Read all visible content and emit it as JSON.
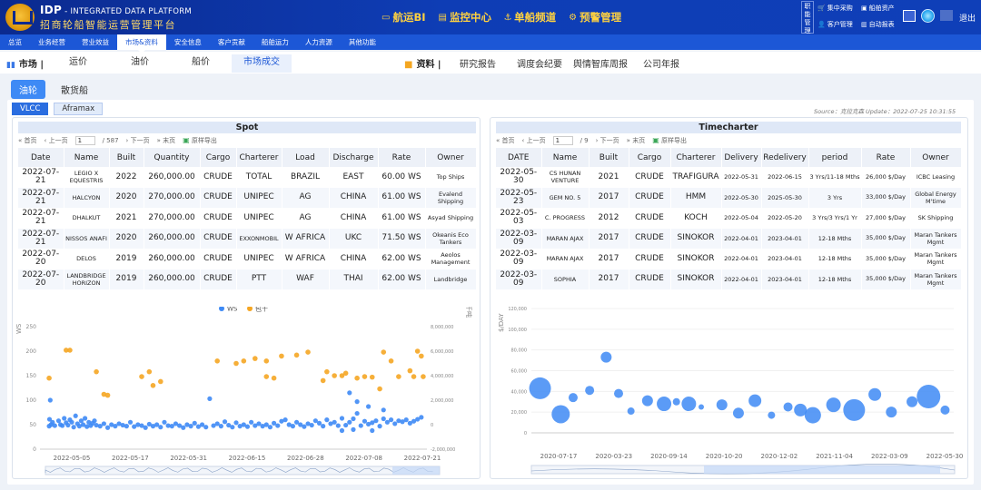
{
  "app": {
    "brand_title": "IDP",
    "brand_sub": " - INTEGRATED DATA PLATFORM",
    "brand_cn": "招商轮船智能运营管理平台",
    "topnav": [
      {
        "icon": "▭",
        "label": "航运BI"
      },
      {
        "icon": "▤",
        "label": "监控中心"
      },
      {
        "icon": "⚓",
        "label": "单船频道"
      },
      {
        "icon": "⚙",
        "label": "预警管理"
      }
    ],
    "side_label": "职能管理",
    "quick": [
      "集中采购",
      "船舶资产",
      "客户管理",
      "自动报表"
    ],
    "logout": "退出"
  },
  "menu": [
    "总览",
    "业务经营",
    "营业效益",
    "市场&资料",
    "安全信息",
    "客户贡献",
    "船舶运力",
    "人力资源",
    "其他功能"
  ],
  "subnav": {
    "market_label": "市场 |",
    "tabs": [
      "运价",
      "油价",
      "船价",
      "市场成交"
    ],
    "res_label": "资料 |",
    "res_links": [
      "研究报告",
      "调度会纪要",
      "舆情智库周报",
      "公司年报"
    ]
  },
  "pills": [
    "油轮",
    "散货船"
  ],
  "sizes": [
    "VLCC",
    "Aframax"
  ],
  "source": "Source：克拉克森  Update：2022-07-25 10:31:55",
  "spot": {
    "title": "Spot",
    "pager": {
      "first": "首页",
      "prev": "上一页",
      "page": "1",
      "total": "/ 587",
      "next": "下一页",
      "last": "末页",
      "export": "原样导出"
    },
    "headers": [
      "Date",
      "Name",
      "Built",
      "Quantity",
      "Cargo",
      "Charterer",
      "Load",
      "Discharge",
      "Rate",
      "Owner"
    ],
    "rows": [
      [
        "2022-07-21",
        "LEGIO X EQUESTRIS",
        "2022",
        "260,000.00",
        "CRUDE",
        "TOTAL",
        "BRAZIL",
        "EAST",
        "60.00 WS",
        "Top Ships"
      ],
      [
        "2022-07-21",
        "HALCYON",
        "2020",
        "270,000.00",
        "CRUDE",
        "UNIPEC",
        "AG",
        "CHINA",
        "61.00 WS",
        "Evalend Shipping"
      ],
      [
        "2022-07-21",
        "DHALKUT",
        "2021",
        "270,000.00",
        "CRUDE",
        "UNIPEC",
        "AG",
        "CHINA",
        "61.00 WS",
        "Asyad Shipping"
      ],
      [
        "2022-07-21",
        "NISSOS ANAFI",
        "2020",
        "260,000.00",
        "CRUDE",
        "EXXONMOBIL",
        "W AFRICA",
        "UKC",
        "71.50 WS",
        "Okeanis Eco Tankers"
      ],
      [
        "2022-07-20",
        "DELOS",
        "2019",
        "260,000.00",
        "CRUDE",
        "UNIPEC",
        "W AFRICA",
        "CHINA",
        "62.00 WS",
        "Aeolos Management"
      ],
      [
        "2022-07-20",
        "LANDBRIDGE HORIZON",
        "2019",
        "260,000.00",
        "CRUDE",
        "PTT",
        "WAF",
        "THAI",
        "62.00 WS",
        "Landbridge"
      ]
    ]
  },
  "tc": {
    "title": "Timecharter",
    "pager": {
      "first": "首页",
      "prev": "上一页",
      "page": "1",
      "total": "/ 9",
      "next": "下一页",
      "last": "末页",
      "export": "原样导出"
    },
    "headers": [
      "DATE",
      "Name",
      "Built",
      "Cargo",
      "Charterer",
      "Delivery",
      "Redelivery",
      "period",
      "Rate",
      "Owner"
    ],
    "rows": [
      [
        "2022-05-30",
        "CS HUNAN VENTURE",
        "2021",
        "CRUDE",
        "TRAFIGURA",
        "2022-05-31",
        "2022-06-15",
        "3 Yrs/11-18 Mths",
        "26,000 $/Day",
        "ICBC Leasing"
      ],
      [
        "2022-05-23",
        "GEM NO. 5",
        "2017",
        "CRUDE",
        "HMM",
        "2022-05-30",
        "2025-05-30",
        "3 Yrs",
        "33,000 $/Day",
        "Global Energy M'time"
      ],
      [
        "2022-05-03",
        "C. PROGRESS",
        "2012",
        "CRUDE",
        "KOCH",
        "2022-05-04",
        "2022-05-20",
        "3 Yrs/3 Yrs/1 Yr",
        "27,000 $/Day",
        "SK Shipping"
      ],
      [
        "2022-03-09",
        "MARAN AJAX",
        "2017",
        "CRUDE",
        "SINOKOR",
        "2022-04-01",
        "2023-04-01",
        "12-18 Mths",
        "35,000 $/Day",
        "Maran Tankers Mgmt"
      ],
      [
        "2022-03-09",
        "MARAN AJAX",
        "2017",
        "CRUDE",
        "SINOKOR",
        "2022-04-01",
        "2023-04-01",
        "12-18 Mths",
        "35,000 $/Day",
        "Maran Tankers Mgmt"
      ],
      [
        "2022-03-09",
        "SOPHIA",
        "2017",
        "CRUDE",
        "SINOKOR",
        "2022-04-01",
        "2023-04-01",
        "12-18 Mths",
        "35,000 $/Day",
        "Maran Tankers Mgmt"
      ]
    ]
  },
  "chart_data": [
    {
      "type": "scatter",
      "ylabel": "WS",
      "y2label": "千吨",
      "colors": [
        "#3e8af5",
        "#f5a623"
      ],
      "legend": [
        "WS",
        "包干"
      ],
      "legend_position": "top",
      "x_ticks": [
        "2022-05-05",
        "2022-05-17",
        "2022-05-31",
        "2022-06-15",
        "2022-06-28",
        "2022-07-08",
        "2022-07-21"
      ],
      "y_ticks": [
        "0",
        "50",
        "100",
        "150",
        "200",
        "250"
      ],
      "y2_ticks": [
        "-2,000,000",
        "0",
        "2,000,000",
        "4,000,000",
        "6,000,000",
        "8,000,000"
      ],
      "series": [
        {
          "name": "WS",
          "points": [
            [
              0.005,
              47
            ],
            [
              0.006,
              61
            ],
            [
              0.008,
              100
            ],
            [
              0.01,
              50
            ],
            [
              0.014,
              55
            ],
            [
              0.02,
              48
            ],
            [
              0.03,
              58
            ],
            [
              0.035,
              50
            ],
            [
              0.04,
              48
            ],
            [
              0.045,
              63
            ],
            [
              0.05,
              54
            ],
            [
              0.055,
              49
            ],
            [
              0.06,
              60
            ],
            [
              0.065,
              55
            ],
            [
              0.07,
              45
            ],
            [
              0.075,
              68
            ],
            [
              0.08,
              52
            ],
            [
              0.085,
              47
            ],
            [
              0.09,
              58
            ],
            [
              0.095,
              50
            ],
            [
              0.1,
              63
            ],
            [
              0.105,
              46
            ],
            [
              0.11,
              55
            ],
            [
              0.115,
              48
            ],
            [
              0.12,
              53
            ],
            [
              0.125,
              58
            ],
            [
              0.13,
              49
            ],
            [
              0.14,
              47
            ],
            [
              0.15,
              52
            ],
            [
              0.16,
              44
            ],
            [
              0.17,
              50
            ],
            [
              0.18,
              47
            ],
            [
              0.19,
              52
            ],
            [
              0.2,
              49
            ],
            [
              0.21,
              47
            ],
            [
              0.22,
              55
            ],
            [
              0.23,
              46
            ],
            [
              0.24,
              50
            ],
            [
              0.25,
              48
            ],
            [
              0.26,
              44
            ],
            [
              0.27,
              51
            ],
            [
              0.28,
              47
            ],
            [
              0.29,
              50
            ],
            [
              0.3,
              45
            ],
            [
              0.31,
              55
            ],
            [
              0.32,
              48
            ],
            [
              0.33,
              47
            ],
            [
              0.34,
              52
            ],
            [
              0.35,
              48
            ],
            [
              0.36,
              44
            ],
            [
              0.37,
              50
            ],
            [
              0.38,
              47
            ],
            [
              0.39,
              53
            ],
            [
              0.4,
              46
            ],
            [
              0.41,
              50
            ],
            [
              0.42,
              45
            ],
            [
              0.43,
              103
            ],
            [
              0.44,
              48
            ],
            [
              0.45,
              52
            ],
            [
              0.46,
              47
            ],
            [
              0.47,
              56
            ],
            [
              0.48,
              49
            ],
            [
              0.49,
              45
            ],
            [
              0.5,
              54
            ],
            [
              0.51,
              47
            ],
            [
              0.52,
              50
            ],
            [
              0.53,
              46
            ],
            [
              0.54,
              55
            ],
            [
              0.55,
              48
            ],
            [
              0.56,
              52
            ],
            [
              0.57,
              47
            ],
            [
              0.58,
              50
            ],
            [
              0.59,
              45
            ],
            [
              0.6,
              53
            ],
            [
              0.61,
              48
            ],
            [
              0.62,
              57
            ],
            [
              0.63,
              60
            ],
            [
              0.64,
              50
            ],
            [
              0.65,
              47
            ],
            [
              0.66,
              55
            ],
            [
              0.67,
              50
            ],
            [
              0.68,
              46
            ],
            [
              0.69,
              52
            ],
            [
              0.7,
              49
            ],
            [
              0.71,
              58
            ],
            [
              0.72,
              53
            ],
            [
              0.73,
              47
            ],
            [
              0.74,
              60
            ],
            [
              0.75,
              52
            ],
            [
              0.76,
              55
            ],
            [
              0.77,
              48
            ],
            [
              0.78,
              63
            ],
            [
              0.79,
              49
            ],
            [
              0.8,
              55
            ],
            [
              0.81,
              62
            ],
            [
              0.82,
              73
            ],
            [
              0.83,
              48
            ],
            [
              0.84,
              57
            ],
            [
              0.85,
              51
            ],
            [
              0.86,
              54
            ],
            [
              0.87,
              58
            ],
            [
              0.88,
              47
            ],
            [
              0.89,
              62
            ],
            [
              0.9,
              55
            ],
            [
              0.91,
              60
            ],
            [
              0.92,
              52
            ],
            [
              0.93,
              58
            ],
            [
              0.94,
              56
            ],
            [
              0.95,
              60
            ],
            [
              0.96,
              53
            ],
            [
              0.97,
              57
            ],
            [
              0.98,
              61
            ],
            [
              0.99,
              65
            ],
            [
              0.8,
              115
            ],
            [
              0.82,
              97
            ],
            [
              0.85,
              87
            ],
            [
              0.89,
              80
            ],
            [
              0.81,
              40
            ],
            [
              0.78,
              38
            ],
            [
              0.86,
              38
            ]
          ]
        },
        {
          "name": "包干",
          "points": [
            [
              0.005,
              145
            ],
            [
              0.05,
              202
            ],
            [
              0.06,
              202
            ],
            [
              0.13,
              158
            ],
            [
              0.15,
              112
            ],
            [
              0.16,
              110
            ],
            [
              0.25,
              148
            ],
            [
              0.27,
              158
            ],
            [
              0.28,
              130
            ],
            [
              0.3,
              138
            ],
            [
              0.45,
              180
            ],
            [
              0.5,
              175
            ],
            [
              0.52,
              180
            ],
            [
              0.55,
              185
            ],
            [
              0.58,
              180
            ],
            [
              0.62,
              190
            ],
            [
              0.6,
              145
            ],
            [
              0.58,
              148
            ],
            [
              0.66,
              192
            ],
            [
              0.69,
              198
            ],
            [
              0.73,
              140
            ],
            [
              0.74,
              158
            ],
            [
              0.76,
              150
            ],
            [
              0.78,
              150
            ],
            [
              0.79,
              155
            ],
            [
              0.82,
              145
            ],
            [
              0.84,
              148
            ],
            [
              0.86,
              147
            ],
            [
              0.89,
              198
            ],
            [
              0.91,
              180
            ],
            [
              0.93,
              148
            ],
            [
              0.96,
              160
            ],
            [
              0.97,
              148
            ],
            [
              0.98,
              200
            ],
            [
              0.99,
              190
            ],
            [
              0.995,
              148
            ],
            [
              0.88,
              123
            ]
          ]
        }
      ]
    },
    {
      "type": "scatter",
      "ylabel": "$/DAY",
      "colors": [
        "#3e8af5"
      ],
      "x_ticks": [
        "2020-07-17",
        "2020-03-23",
        "2020-09-14",
        "2020-10-20",
        "2020-12-02",
        "2021-11-04",
        "2022-03-09",
        "2022-05-30"
      ],
      "y_ticks": [
        "0",
        "20,000",
        "40,000",
        "60,000",
        "80,000",
        "100,000",
        "120,000"
      ],
      "series": [
        {
          "name": "Rate",
          "points": [
            [
              0.01,
              43000,
              12
            ],
            [
              0.06,
              18000,
              10
            ],
            [
              0.09,
              34000,
              5
            ],
            [
              0.13,
              41000,
              5
            ],
            [
              0.17,
              73000,
              6
            ],
            [
              0.2,
              38000,
              5
            ],
            [
              0.23,
              21000,
              4
            ],
            [
              0.27,
              31000,
              6
            ],
            [
              0.31,
              28000,
              8
            ],
            [
              0.34,
              30000,
              4
            ],
            [
              0.37,
              28000,
              8
            ],
            [
              0.4,
              25000,
              3
            ],
            [
              0.45,
              27000,
              6
            ],
            [
              0.49,
              19000,
              6
            ],
            [
              0.53,
              31000,
              7
            ],
            [
              0.57,
              17000,
              4
            ],
            [
              0.61,
              25000,
              5
            ],
            [
              0.64,
              22000,
              7
            ],
            [
              0.67,
              17000,
              9
            ],
            [
              0.72,
              27000,
              8
            ],
            [
              0.77,
              22000,
              12
            ],
            [
              0.82,
              37000,
              7
            ],
            [
              0.86,
              20000,
              6
            ],
            [
              0.91,
              30000,
              6
            ],
            [
              0.95,
              35000,
              13
            ],
            [
              0.99,
              22000,
              5
            ]
          ]
        }
      ]
    }
  ]
}
